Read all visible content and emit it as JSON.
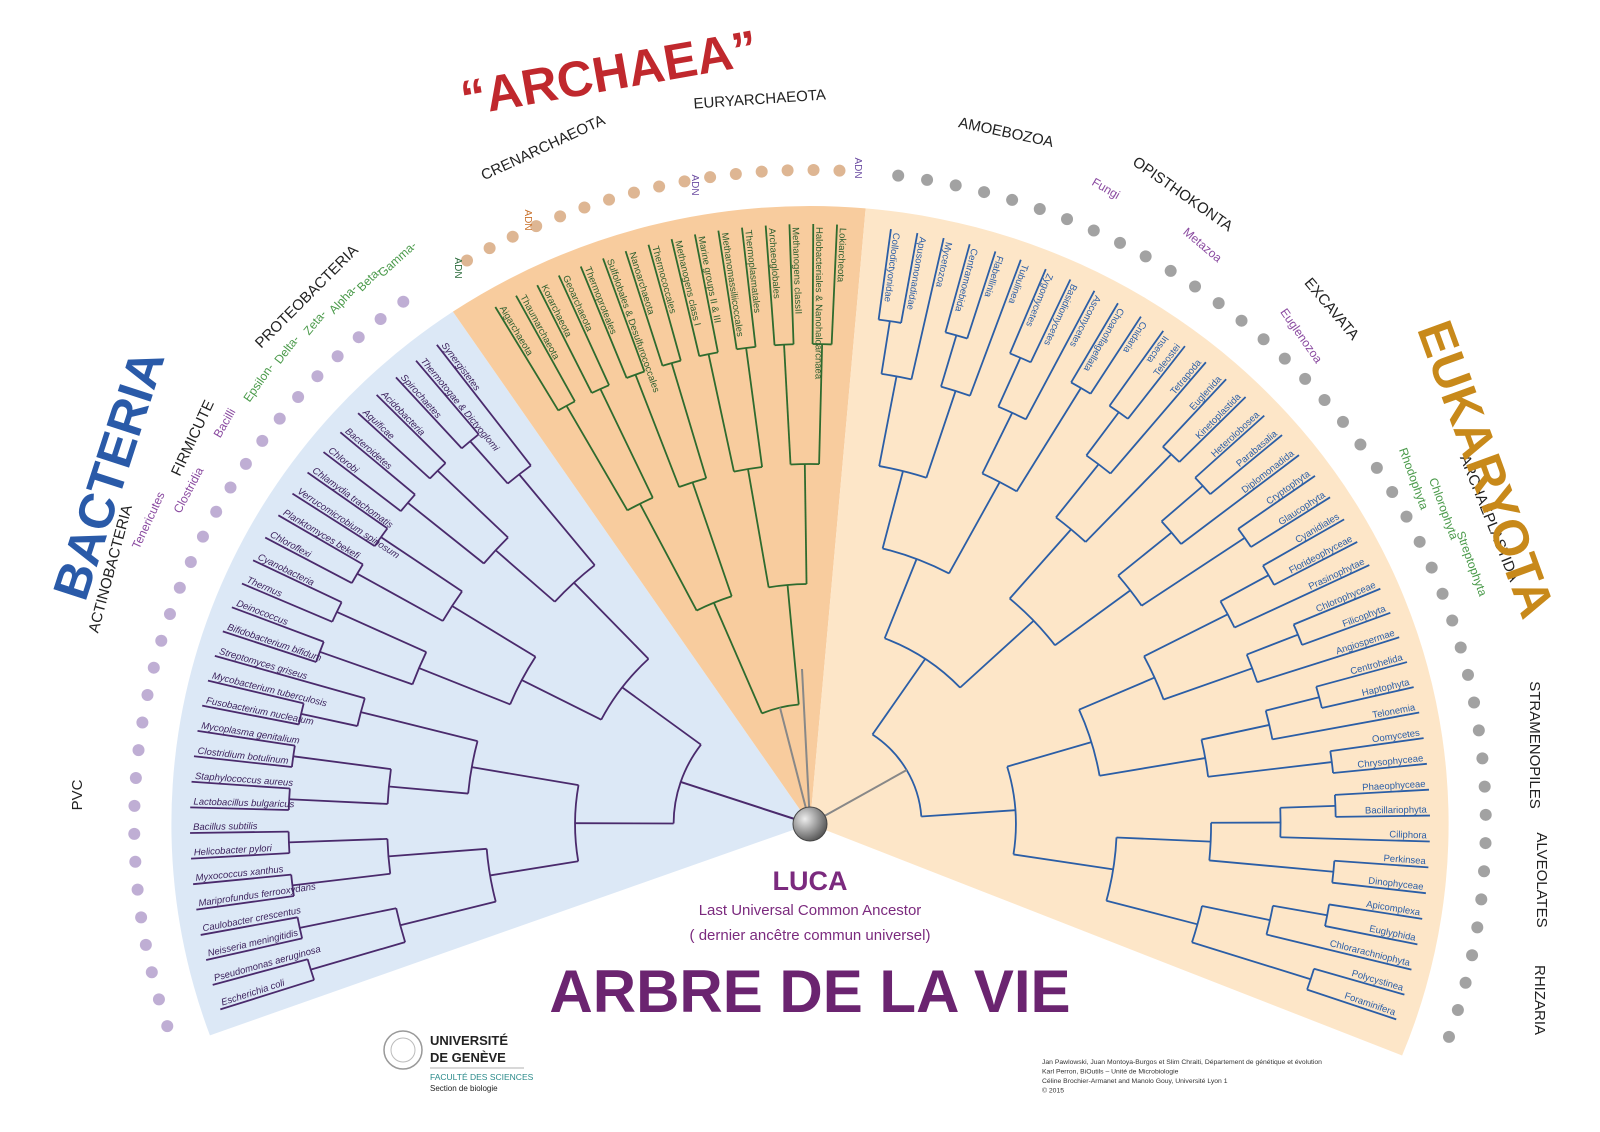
{
  "title": "ARBRE DE LA VIE",
  "domains": [
    {
      "name": "BACTERIA",
      "leaves": [
        "Escherichia coli",
        "Pseudomonas aeruginosa",
        "Neisseria meningitidis",
        "Caulobacter crescentus",
        "Mariprofundus ferrooxydans",
        "Myxococcus xanthus",
        "Helicobacter pylori",
        "Bacillus subtilis",
        "Lactobacillus bulgaricus",
        "Staphylococcus aureus",
        "Clostridium botulinum",
        "Mycoplasma genitalium",
        "Fusobacterium nucleatum",
        "Mycobacterium tuberculosis",
        "Streptomyces griseus",
        "Bifidobacterium bifidum",
        "Deinococcus",
        "Thermus",
        "Cyanobacteria",
        "Chloroflexi",
        "Planktomyces bekefi",
        "Verrucomicrobium spinosum",
        "Chlamydia trachomatis",
        "Chlorobi",
        "Bacteroidetes",
        "Aquificae",
        "Acidobacteria",
        "Spirochaetes",
        "Thermotogae & Dictyoglomi",
        "Synergistetes"
      ]
    },
    {
      "name": "“ARCHAEA”",
      "leaves": [
        "Aigarchaeota",
        "Thaumarchaeota",
        "Korarchaeota",
        "Geoarchaeota",
        "Thermoproteales",
        "Sulfolobales & Desulfurococcales",
        "Nanoarchaeota",
        "Thermococcales",
        "Methanogens class I",
        "Marine groups II & III",
        "Methanomassiliicoccales",
        "Thermoplasmatales",
        "Archaeoglobales",
        "Methanogens classII",
        "Halobacteriales & Nanohaloarchaea",
        "Lokiarcheota"
      ]
    },
    {
      "name": "EUKARYOTA",
      "leaves": [
        "Collodictyonidae",
        "Apusomonadidae",
        "Mycetozoa",
        "Centramoebida",
        "Flabellinia",
        "Tubulinea",
        "Zygomycetes",
        "Basidiomycetes",
        "Ascomycetes",
        "Choanoflagellata",
        "Cnidaria",
        "Insecta",
        "Teleostei",
        "Tetrapoda",
        "Euglenida",
        "Kinetoplastida",
        "Heterolobosea",
        "Parabasalia",
        "Diplomonadida",
        "Cryptophyta",
        "Glaucophyta",
        "Cyanidiales",
        "Florideophyceae",
        "Prasinophytae",
        "Chlorophyceae",
        "Filicophyta",
        "Angiospermae",
        "Centrohelida",
        "Haptophyta",
        "Telonemia",
        "Oomycetes",
        "Chrysophyceae",
        "Phaeophyceae",
        "Bacillariophyta",
        "Ciliphora",
        "Perkinsea",
        "Dinophyceae",
        "Apicomplexa",
        "Euglyphida",
        "Chlorarachniophyta",
        "Polycystinea",
        "Foraminifera"
      ]
    }
  ],
  "groups": [
    "ACTINOBACTERIA",
    "FIRMICUTE",
    "PROTEOBACTERIA",
    "PVC",
    "Tenericutes",
    "Clostridia",
    "Bacilli",
    "Epsilon-",
    "Delta-",
    "Zeta-",
    "Alpha-",
    "Beta-",
    "Gamma-",
    "CRENARCHAEOTA",
    "EURYARCHAEOTA",
    "AMOEBOZOA",
    "OPISTHOKONTA",
    "Fungi",
    "Metazoa",
    "EXCAVATA",
    "Euglenozoa",
    "ARCHAEPLASTIDA",
    "Rhodophyta",
    "Chlorophyta",
    "Streptophyta",
    "STRAMENOPILES",
    "ALVEOLATES",
    "RHIZARIA",
    "ADN",
    "ADN",
    "ADN",
    "ADN"
  ],
  "luca": {
    "name": "LUCA",
    "subtitle": "Last Universal Common Ancestor",
    "subtitle_fr": "( dernier ancêtre commun universel)"
  },
  "institution": {
    "line1": "UNIVERSITÉ",
    "line2": "DE GENÈVE",
    "faculty": "FACULTÉ DES SCIENCES",
    "section": "Section de biologie"
  },
  "credits": [
    "Jan Pawlowski, Juan Montoya-Burgos et Slim Chraiti, Département de génétique et évolution",
    "Karl Perron, BiOutils – Unité de Microbiologie",
    "Céline Brochier-Armanet and Manolo Gouy, Université Lyon 1",
    "© 2015"
  ]
}
